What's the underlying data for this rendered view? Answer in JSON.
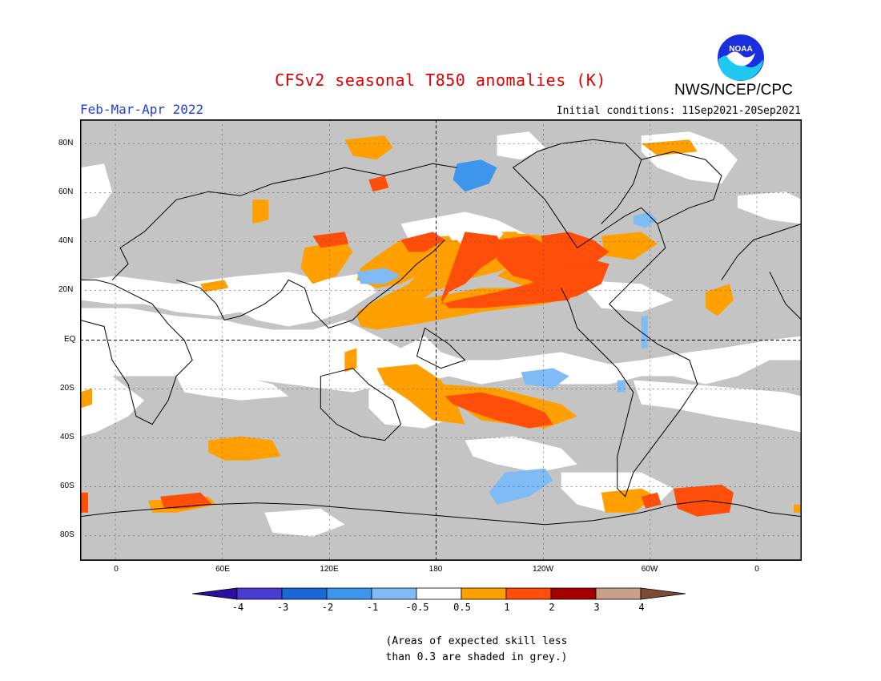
{
  "title": "CFSv2 seasonal T850 anomalies (K)",
  "organization": "NWS/NCEP/CPC",
  "logo_text": "NOAA",
  "season": "Feb-Mar-Apr 2022",
  "initial_conditions": "Initial conditions: 11Sep2021-20Sep2021",
  "map": {
    "lat_labels": [
      "80N",
      "60N",
      "40N",
      "20N",
      "EQ",
      "20S",
      "40S",
      "60S",
      "80S"
    ],
    "lon_labels": [
      "0",
      "60E",
      "120E",
      "180",
      "120W",
      "60W",
      "0"
    ],
    "grid": true
  },
  "legend": {
    "tick_labels": [
      "-4",
      "-3",
      "-2",
      "-1",
      "-0.5",
      "0.5",
      "1",
      "2",
      "3",
      "4"
    ],
    "colors": [
      "#2a0fa0",
      "#4a3cd0",
      "#1a68d8",
      "#3d96ec",
      "#7fbcf6",
      "#ffffff",
      "#ff9f00",
      "#ff4d0a",
      "#a50000",
      "#c9a08a",
      "#7d4b33"
    ]
  },
  "note": [
    "(Areas of expected skill less",
    "than 0.3 are shaded in grey.)"
  ],
  "colors": {
    "title": "#e00000",
    "season": "#1f3fd6",
    "grey_low_skill": "#c4c4c4"
  }
}
